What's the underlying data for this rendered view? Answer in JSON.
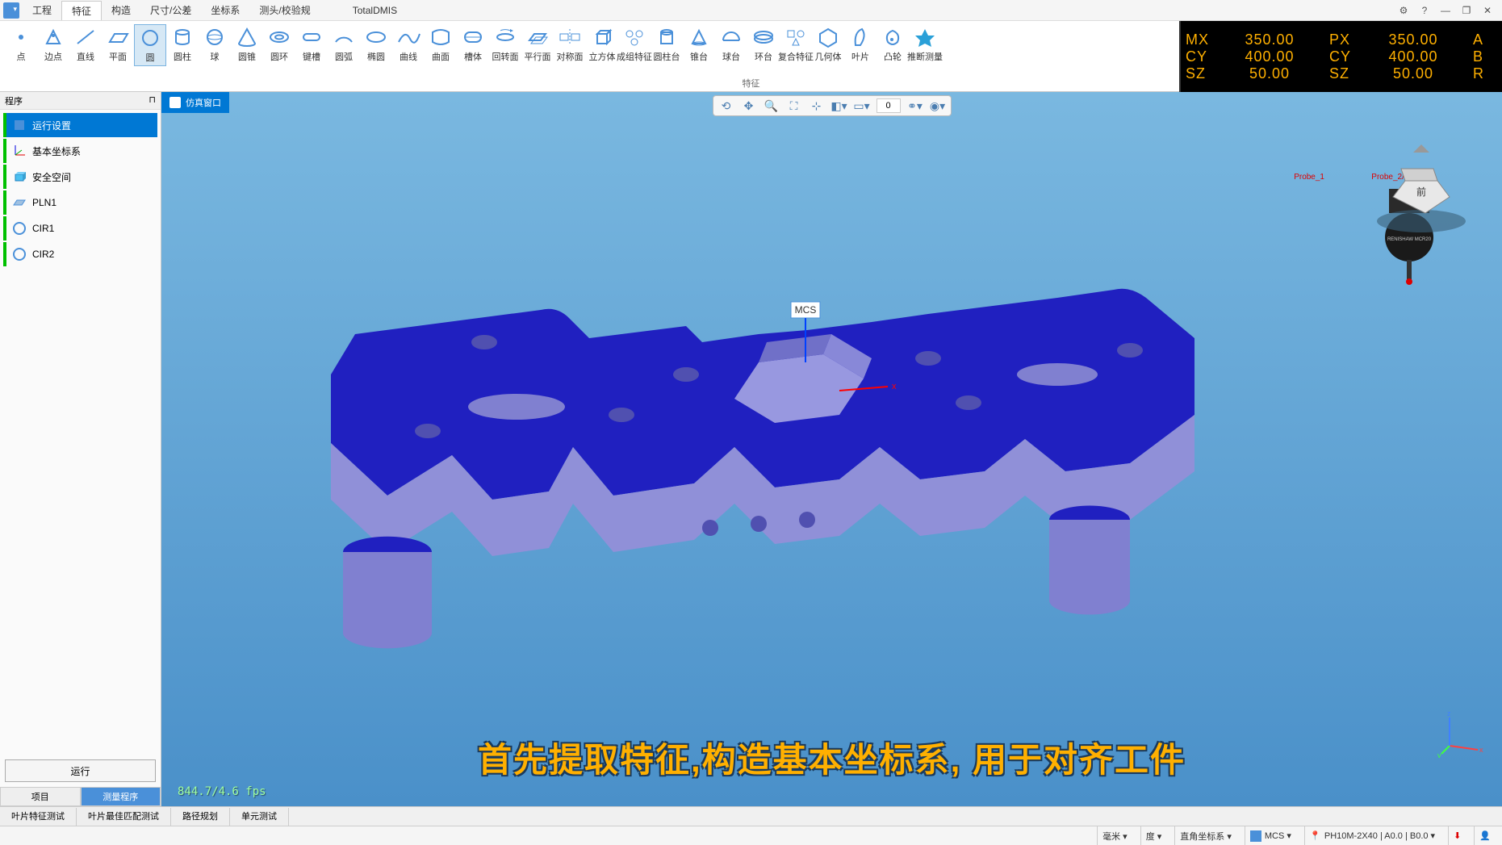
{
  "app_title": "TotalDMIS",
  "menu": {
    "items": [
      "工程",
      "特征",
      "构造",
      "尺寸/公差",
      "坐标系",
      "测头/校验规"
    ],
    "active_index": 1
  },
  "window_controls": {
    "gear": "⚙",
    "help": "?",
    "min": "—",
    "max": "❐",
    "close": "✕"
  },
  "ribbon": {
    "tools": [
      {
        "label": "点",
        "icon": "point"
      },
      {
        "label": "边点",
        "icon": "edgepoint"
      },
      {
        "label": "直线",
        "icon": "line"
      },
      {
        "label": "平面",
        "icon": "plane"
      },
      {
        "label": "圆",
        "icon": "circle",
        "active": true
      },
      {
        "label": "圆柱",
        "icon": "cylinder"
      },
      {
        "label": "球",
        "icon": "sphere"
      },
      {
        "label": "圆锥",
        "icon": "cone"
      },
      {
        "label": "圆环",
        "icon": "torus"
      },
      {
        "label": "键槽",
        "icon": "slot"
      },
      {
        "label": "圆弧",
        "icon": "arc"
      },
      {
        "label": "椭圆",
        "icon": "ellipse"
      },
      {
        "label": "曲线",
        "icon": "curve"
      },
      {
        "label": "曲面",
        "icon": "surface"
      },
      {
        "label": "槽体",
        "icon": "slotbody"
      },
      {
        "label": "回转面",
        "icon": "revolve"
      },
      {
        "label": "平行面",
        "icon": "parallel"
      },
      {
        "label": "对称面",
        "icon": "symmetric"
      },
      {
        "label": "立方体",
        "icon": "cube"
      },
      {
        "label": "成组特征",
        "icon": "group"
      },
      {
        "label": "圆柱台",
        "icon": "cylboss"
      },
      {
        "label": "锥台",
        "icon": "coneboss"
      },
      {
        "label": "球台",
        "icon": "sphereboss"
      },
      {
        "label": "环台",
        "icon": "ringboss"
      },
      {
        "label": "复合特征",
        "icon": "compound"
      },
      {
        "label": "几何体",
        "icon": "geom"
      },
      {
        "label": "叶片",
        "icon": "blade"
      },
      {
        "label": "凸轮",
        "icon": "cam"
      },
      {
        "label": "推断测量",
        "icon": "infer",
        "accent": true
      }
    ],
    "group_label": "特征"
  },
  "dro": {
    "rows": [
      {
        "l1": "MX",
        "v1": "350.00",
        "l2": "PX",
        "v2": "350.00",
        "r": "A"
      },
      {
        "l1": "CY",
        "v1": "400.00",
        "l2": "CY",
        "v2": "400.00",
        "r": "B"
      },
      {
        "l1": "SZ",
        "v1": "50.00",
        "l2": "SZ",
        "v2": "50.00",
        "r": "R"
      }
    ]
  },
  "left_panel": {
    "header": "程序",
    "items": [
      {
        "label": "运行设置",
        "selected": true,
        "icon_type": "settings"
      },
      {
        "label": "基本坐标系",
        "icon_type": "csys"
      },
      {
        "label": "安全空间",
        "icon_type": "safe"
      },
      {
        "label": "PLN1",
        "icon_type": "plane"
      },
      {
        "label": "CIR1",
        "icon_type": "circle"
      },
      {
        "label": "CIR2",
        "icon_type": "circle"
      }
    ],
    "run_button": "运行",
    "tabs": [
      "项目",
      "测量程序"
    ],
    "active_tab": 1
  },
  "viewport": {
    "tab_label": "仿真窗口",
    "toolbar_input": "0",
    "mcs_label": "MCS",
    "probe_text_1": "Probe_1",
    "probe_text_2": "Probe_2/A0-2",
    "cube_face": "前",
    "fps": "844.7/4.6 fps",
    "axis_x": "x",
    "axis_y": "y",
    "axis_z": "z",
    "part_colors": {
      "top": "#2020c0",
      "side": "#8080d0",
      "front": "#9090d8",
      "hex_top": "#7070c8",
      "hex_side": "#9898e0",
      "hole": "#5050b0"
    }
  },
  "caption": "首先提取特征,构造基本坐标系, 用于对齐工件",
  "bottom_tabs": [
    "叶片特征测试",
    "叶片最佳匹配测试",
    "路径规划",
    "单元测试"
  ],
  "statusbar": {
    "unit": "毫米 ▾",
    "angle": "度 ▾",
    "csys": "直角坐标系 ▾",
    "mcs": "MCS ▾",
    "probe": "PH10M-2X40 | A0.0 | B0.0 ▾"
  }
}
